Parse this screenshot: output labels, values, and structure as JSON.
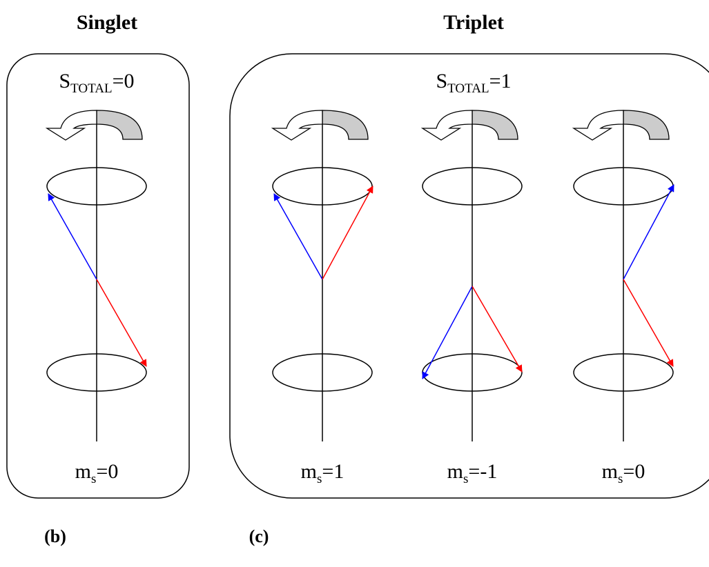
{
  "panels": [
    {
      "title": "Singlet",
      "tag": "(b)",
      "total": {
        "symbol": "S",
        "subscript": "TOTAL",
        "value": "=0"
      },
      "states": [
        {
          "symbol": "m",
          "subscript": "s",
          "value": "=0"
        }
      ]
    },
    {
      "title": "Triplet",
      "tag": "(c)",
      "total": {
        "symbol": "S",
        "subscript": "TOTAL",
        "value": "=1"
      },
      "states": [
        {
          "symbol": "m",
          "subscript": "s",
          "value": "=1"
        },
        {
          "symbol": "m",
          "subscript": "s",
          "value": "=-1"
        },
        {
          "symbol": "m",
          "subscript": "s",
          "value": "=0"
        }
      ]
    }
  ]
}
